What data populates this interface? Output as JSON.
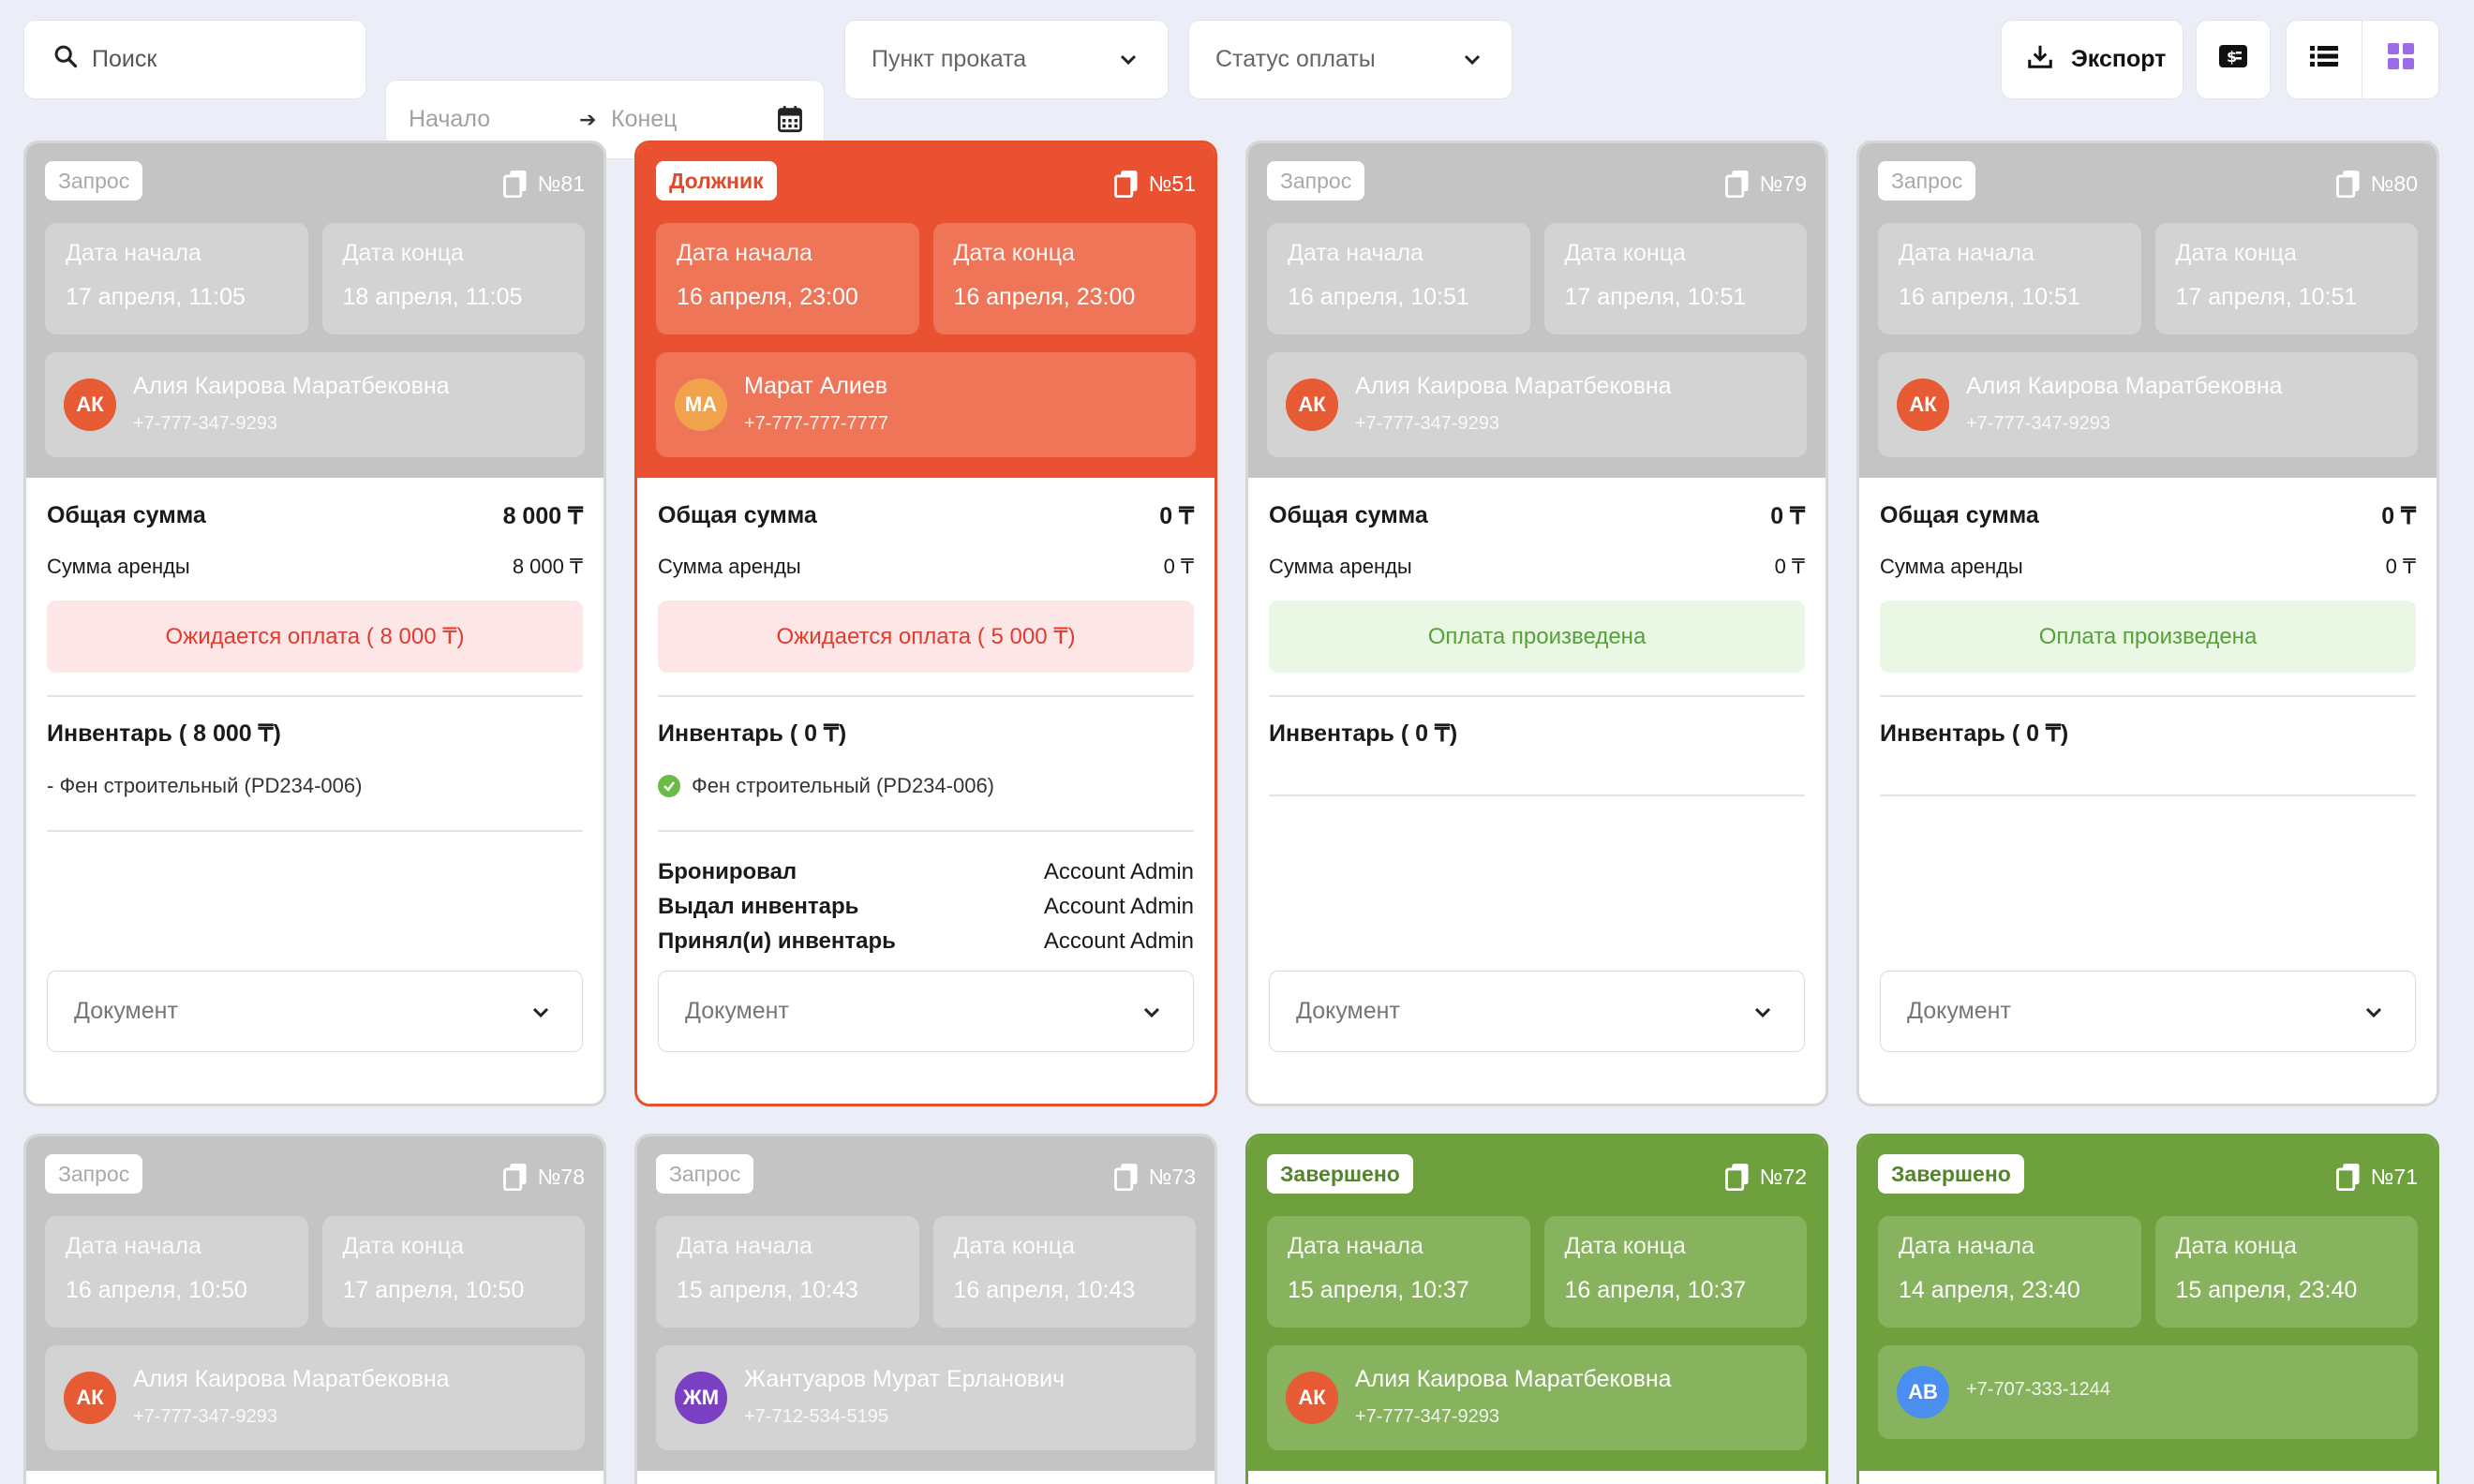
{
  "toolbar": {
    "search_placeholder": "Поиск",
    "date_start_placeholder": "Начало",
    "date_end_placeholder": "Конец",
    "rental_point": "Пункт проката",
    "payment_status": "Статус оплаты",
    "export_label": "Экспорт"
  },
  "labels": {
    "start_date": "Дата начала",
    "end_date": "Дата конца",
    "total": "Общая сумма",
    "rent_sum": "Сумма аренды",
    "document": "Документ",
    "booked": "Бронировал",
    "issued": "Выдал инвентарь",
    "accepted": "Принял(и) инвентарь"
  },
  "colors": {
    "accent": "#ea5130",
    "completed": "#6ea13d",
    "request": "#c4c4c4"
  },
  "cards": [
    {
      "status": "Запрос",
      "number": "№81",
      "start": "17 апреля, 11:05",
      "end": "18 апреля, 11:05",
      "initials": "АК",
      "avatar_color": "#e65a34",
      "name": "Алия Каирова Маратбековна",
      "phone": "+7-777-347-9293",
      "total": "8 000 ₸",
      "rent": "8 000 ₸",
      "payment": "Ожидается оплата ( 8 000 ₸)",
      "inventory": "Инвентарь ( 8 000 ₸)",
      "item": "- Фен строительный (PD234-006)"
    },
    {
      "status": "Должник",
      "number": "№51",
      "start": "16 апреля, 23:00",
      "end": "16 апреля, 23:00",
      "initials": "МА",
      "avatar_color": "#f0a34a",
      "name": "Марат Алиев",
      "phone": "+7-777-777-7777",
      "total": "0 ₸",
      "rent": "0 ₸",
      "payment": "Ожидается оплата ( 5 000 ₸)",
      "inventory": "Инвентарь ( 0 ₸)",
      "item": "Фен строительный (PD234-006)",
      "booked_by": "Account Admin",
      "issued_by": "Account Admin",
      "accepted_by": "Account Admin"
    },
    {
      "status": "Запрос",
      "number": "№79",
      "start": "16 апреля, 10:51",
      "end": "17 апреля, 10:51",
      "initials": "АК",
      "avatar_color": "#e65a34",
      "name": "Алия Каирова Маратбековна",
      "phone": "+7-777-347-9293",
      "total": "0 ₸",
      "rent": "0 ₸",
      "payment": "Оплата произведена",
      "inventory": "Инвентарь ( 0 ₸)"
    },
    {
      "status": "Запрос",
      "number": "№80",
      "start": "16 апреля, 10:51",
      "end": "17 апреля, 10:51",
      "initials": "АК",
      "avatar_color": "#e65a34",
      "name": "Алия Каирова Маратбековна",
      "phone": "+7-777-347-9293",
      "total": "0 ₸",
      "rent": "0 ₸",
      "payment": "Оплата произведена",
      "inventory": "Инвентарь ( 0 ₸)"
    },
    {
      "status": "Запрос",
      "number": "№78",
      "start": "16 апреля, 10:50",
      "end": "17 апреля, 10:50",
      "initials": "АК",
      "avatar_color": "#e65a34",
      "name": "Алия Каирова Маратбековна",
      "phone": "+7-777-347-9293"
    },
    {
      "status": "Запрос",
      "number": "№73",
      "start": "15 апреля, 10:43",
      "end": "16 апреля, 10:43",
      "initials": "ЖМ",
      "avatar_color": "#7b3fc4",
      "name": "Жантуаров Мурат Ерланович",
      "phone": "+7-712-534-5195"
    },
    {
      "status": "Завершено",
      "number": "№72",
      "start": "15 апреля, 10:37",
      "end": "16 апреля, 10:37",
      "initials": "АК",
      "avatar_color": "#e65a34",
      "name": "Алия Каирова Маратбековна",
      "phone": "+7-777-347-9293"
    },
    {
      "status": "Завершено",
      "number": "№71",
      "start": "14 апреля, 23:40",
      "end": "15 апреля, 23:40",
      "initials": "АВ",
      "avatar_color": "#4a8ef0",
      "name": "",
      "phone": "+7-707-333-1244"
    }
  ]
}
